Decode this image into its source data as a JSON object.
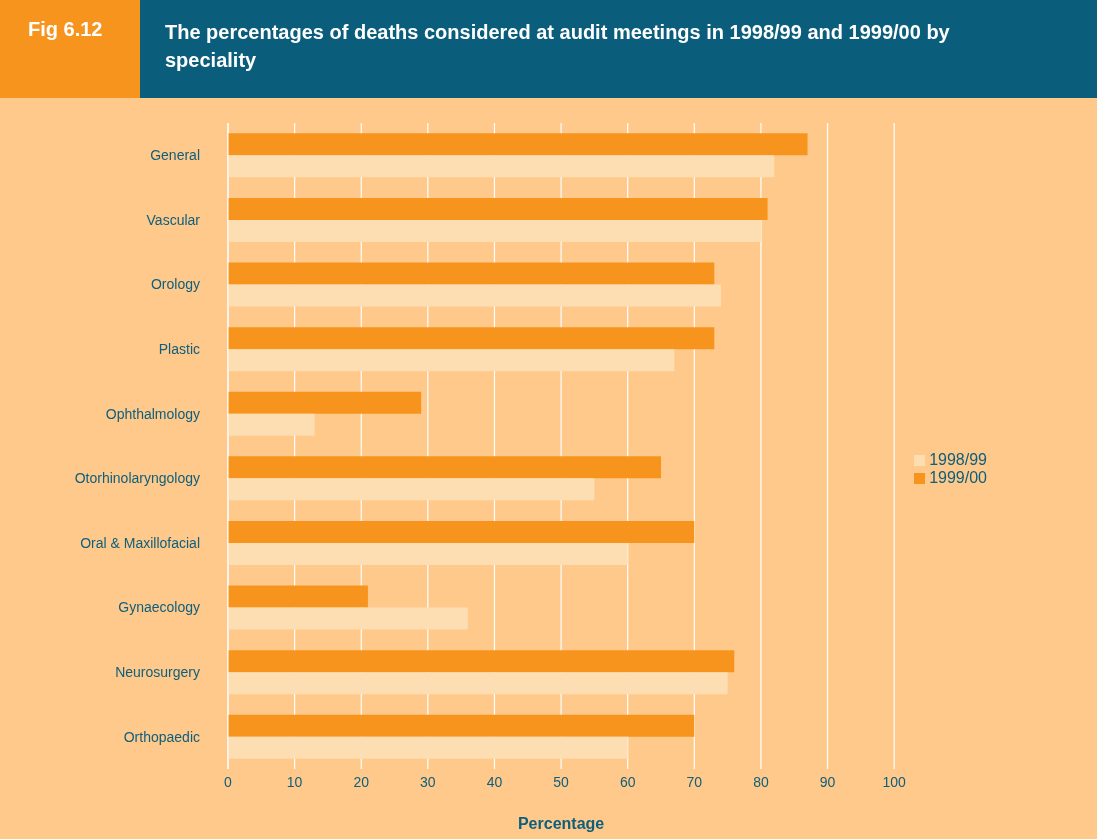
{
  "chart_data": {
    "type": "bar",
    "orientation": "horizontal",
    "title": "The percentages of deaths considered at audit meetings in 1998/99 and 1999/00 by speciality",
    "annotations": [
      "Fig 6.12"
    ],
    "xlabel": "Percentage",
    "categories": [
      "General",
      "Vascular",
      "Orology",
      "Plastic",
      "Ophthalmology",
      "Otorhinolaryngology",
      "Oral & Maxillofacial",
      "Gynaecology",
      "Neurosurgery",
      "Orthopaedic"
    ],
    "series": [
      {
        "name": "1999/00",
        "color": "#f7941d",
        "values": [
          87,
          81,
          73,
          73,
          29,
          65,
          70,
          21,
          76,
          70
        ]
      },
      {
        "name": "1998/99",
        "color": "#fddeb3",
        "values": [
          82,
          80,
          74,
          67,
          13,
          55,
          60,
          36,
          75,
          60
        ]
      }
    ],
    "xlim": [
      0,
      100
    ],
    "xticks": [
      0,
      10,
      20,
      30,
      40,
      50,
      60,
      70,
      80,
      90,
      100
    ],
    "grid": "x",
    "legend": "right"
  }
}
